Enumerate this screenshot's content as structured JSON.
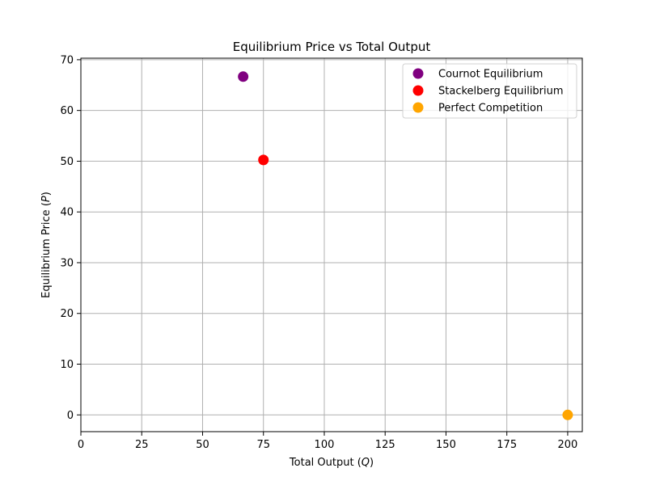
{
  "chart_data": {
    "type": "scatter",
    "title": "Equilibrium Price vs Total Output",
    "xlabel_prefix": "Total Output (",
    "xlabel_var": "Q",
    "xlabel_suffix": ")",
    "ylabel_prefix": "Equilibrium Price (",
    "ylabel_var": "P",
    "ylabel_suffix": ")",
    "xlim": [
      0,
      206
    ],
    "ylim": [
      -3.3,
      70.3
    ],
    "xticks": [
      0,
      25,
      50,
      75,
      100,
      125,
      150,
      175,
      200
    ],
    "yticks": [
      0,
      10,
      20,
      30,
      40,
      50,
      60,
      70
    ],
    "grid": true,
    "legend_position": "upper-right",
    "series": [
      {
        "name": "Cournot Equilibrium",
        "color": "#800080",
        "x": [
          66.67
        ],
        "y": [
          66.67
        ]
      },
      {
        "name": "Stackelberg Equilibrium",
        "color": "#ff0000",
        "x": [
          75
        ],
        "y": [
          50.25
        ]
      },
      {
        "name": "Perfect Competition",
        "color": "#ffa500",
        "x": [
          200
        ],
        "y": [
          0
        ]
      }
    ]
  }
}
